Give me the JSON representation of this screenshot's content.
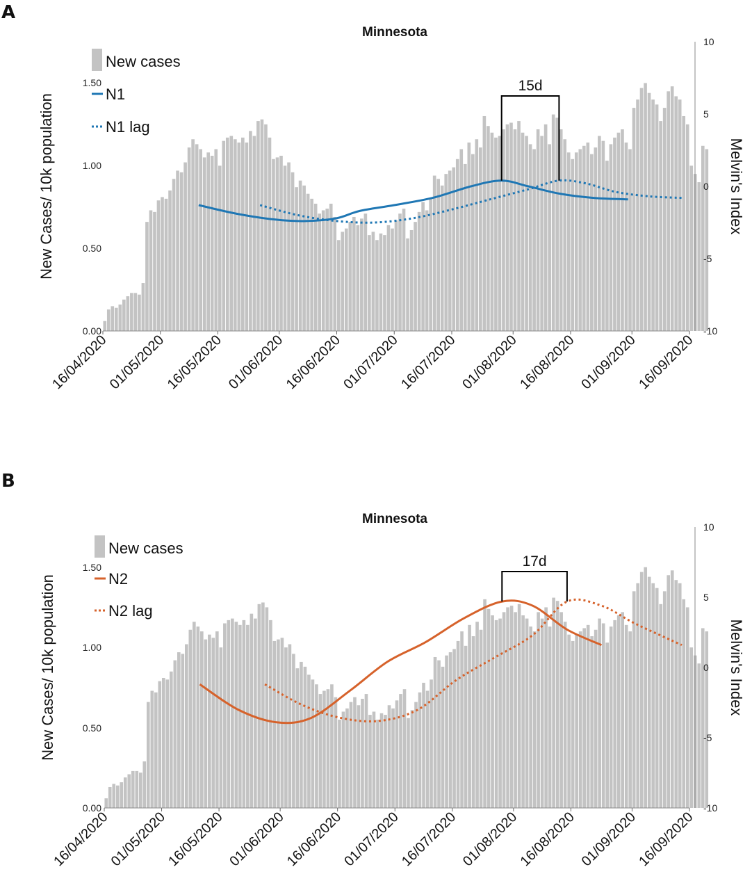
{
  "colors": {
    "bars": "#c3c3c3",
    "n1": "#1f77b4",
    "n2": "#d6622b",
    "bracket": "#000000"
  },
  "chart_data": [
    {
      "panel_label": "A",
      "type": "bar+line",
      "title": "Minnesota",
      "ylabel": "New Cases/ 10k population",
      "y2label": "Melvin's Index",
      "ylim": [
        0,
        1.75
      ],
      "y2lim": [
        -10,
        10
      ],
      "yticks": [
        "0.00",
        "0.50",
        "1.00",
        "1.50"
      ],
      "y2ticks": [
        "10",
        "5",
        "0",
        "-5",
        "-10"
      ],
      "xlim": [
        "2020-04-16",
        "2020-09-16"
      ],
      "xticks": [
        "16/04/2020",
        "01/05/2020",
        "16/05/2020",
        "01/06/2020",
        "16/06/2020",
        "01/07/2020",
        "16/07/2020",
        "01/08/2020",
        "16/08/2020",
        "01/09/2020",
        "16/09/2020"
      ],
      "legend_position": "top-left",
      "legend": {
        "bars": "New cases",
        "solid": "N1",
        "dashed": "N1 lag"
      },
      "bracket": {
        "label": "15d",
        "start": "2020-07-29",
        "end": "2020-08-13"
      },
      "bars": {
        "start_date": "2020-04-16",
        "series": "New cases",
        "values": [
          0.06,
          0.13,
          0.15,
          0.14,
          0.16,
          0.19,
          0.21,
          0.23,
          0.23,
          0.22,
          0.29,
          0.66,
          0.73,
          0.72,
          0.79,
          0.81,
          0.8,
          0.85,
          0.92,
          0.97,
          0.96,
          1.02,
          1.11,
          1.16,
          1.13,
          1.1,
          1.05,
          1.08,
          1.06,
          1.1,
          1.0,
          1.15,
          1.17,
          1.18,
          1.16,
          1.14,
          1.17,
          1.14,
          1.21,
          1.18,
          1.27,
          1.28,
          1.25,
          1.17,
          1.04,
          1.05,
          1.06,
          1.0,
          1.02,
          0.96,
          0.87,
          0.91,
          0.88,
          0.83,
          0.8,
          0.77,
          0.71,
          0.73,
          0.74,
          0.77,
          0.69,
          0.55,
          0.6,
          0.62,
          0.66,
          0.69,
          0.64,
          0.68,
          0.71,
          0.58,
          0.6,
          0.55,
          0.59,
          0.58,
          0.64,
          0.62,
          0.67,
          0.71,
          0.74,
          0.56,
          0.61,
          0.66,
          0.72,
          0.78,
          0.73,
          0.8,
          0.94,
          0.92,
          0.88,
          0.95,
          0.97,
          0.99,
          1.04,
          1.1,
          1.01,
          1.14,
          1.07,
          1.16,
          1.11,
          1.3,
          1.24,
          1.2,
          1.17,
          1.18,
          1.22,
          1.25,
          1.26,
          1.22,
          1.27,
          1.2,
          1.18,
          1.13,
          1.1,
          1.22,
          1.18,
          1.25,
          1.13,
          1.31,
          1.29,
          1.22,
          1.16,
          1.08,
          1.04,
          1.08,
          1.1,
          1.12,
          1.14,
          1.07,
          1.11,
          1.18,
          1.15,
          1.03,
          1.13,
          1.17,
          1.2,
          1.22,
          1.14,
          1.1,
          1.35,
          1.4,
          1.47,
          1.5,
          1.44,
          1.4,
          1.37,
          1.27,
          1.35,
          1.45,
          1.48,
          1.42,
          1.4,
          1.3,
          1.25,
          1.0,
          0.95,
          0.9,
          1.12,
          1.1
        ]
      },
      "lines": [
        {
          "name": "N1",
          "style": "solid",
          "color_key": "n1",
          "x": [
            "2020-05-11",
            "2020-05-21",
            "2020-05-31",
            "2020-06-08",
            "2020-06-16",
            "2020-06-22",
            "2020-07-01",
            "2020-07-11",
            "2020-07-21",
            "2020-07-29",
            "2020-08-05",
            "2020-08-13",
            "2020-08-22",
            "2020-08-31"
          ],
          "y": [
            -1.3,
            -1.9,
            -2.3,
            -2.4,
            -2.2,
            -1.7,
            -1.3,
            -0.8,
            0.0,
            0.4,
            0.0,
            -0.5,
            -0.8,
            -0.9
          ]
        },
        {
          "name": "N1 lag",
          "style": "dashed",
          "color_key": "n1",
          "x": [
            "2020-05-27",
            "2020-06-06",
            "2020-06-16",
            "2020-06-26",
            "2020-07-06",
            "2020-07-16",
            "2020-07-26",
            "2020-08-05",
            "2020-08-13",
            "2020-08-20",
            "2020-08-28",
            "2020-09-06",
            "2020-09-14"
          ],
          "y": [
            -1.3,
            -2.0,
            -2.4,
            -2.5,
            -2.2,
            -1.6,
            -0.9,
            -0.2,
            0.4,
            0.2,
            -0.4,
            -0.7,
            -0.8
          ]
        }
      ]
    },
    {
      "panel_label": "B",
      "type": "bar+line",
      "title": "Minnesota",
      "ylabel": "New Cases/ 10k population",
      "y2label": "Melvin's Index",
      "ylim": [
        0,
        1.75
      ],
      "y2lim": [
        -10,
        10
      ],
      "yticks": [
        "0.00",
        "0.50",
        "1.00",
        "1.50"
      ],
      "y2ticks": [
        "10",
        "5",
        "0",
        "-5",
        "-10"
      ],
      "xlim": [
        "2020-04-16",
        "2020-09-16"
      ],
      "xticks": [
        "16/04/2020",
        "01/05/2020",
        "16/05/2020",
        "01/06/2020",
        "16/06/2020",
        "01/07/2020",
        "16/07/2020",
        "01/08/2020",
        "16/08/2020",
        "01/09/2020",
        "16/09/2020"
      ],
      "legend_position": "top-left",
      "legend": {
        "bars": "New cases",
        "solid": "N2",
        "dashed": "N2 lag"
      },
      "bracket": {
        "label": "17d",
        "start": "2020-07-29",
        "end": "2020-08-15"
      },
      "bars": {
        "start_date": "2020-04-16",
        "series": "New cases",
        "values": [
          0.06,
          0.13,
          0.15,
          0.14,
          0.16,
          0.19,
          0.21,
          0.23,
          0.23,
          0.22,
          0.29,
          0.66,
          0.73,
          0.72,
          0.79,
          0.81,
          0.8,
          0.85,
          0.92,
          0.97,
          0.96,
          1.02,
          1.11,
          1.16,
          1.13,
          1.1,
          1.05,
          1.08,
          1.06,
          1.1,
          1.0,
          1.15,
          1.17,
          1.18,
          1.16,
          1.14,
          1.17,
          1.14,
          1.21,
          1.18,
          1.27,
          1.28,
          1.25,
          1.17,
          1.04,
          1.05,
          1.06,
          1.0,
          1.02,
          0.96,
          0.87,
          0.91,
          0.88,
          0.83,
          0.8,
          0.77,
          0.71,
          0.73,
          0.74,
          0.77,
          0.69,
          0.55,
          0.6,
          0.62,
          0.66,
          0.69,
          0.64,
          0.68,
          0.71,
          0.58,
          0.6,
          0.55,
          0.59,
          0.58,
          0.64,
          0.62,
          0.67,
          0.71,
          0.74,
          0.56,
          0.61,
          0.66,
          0.72,
          0.78,
          0.73,
          0.8,
          0.94,
          0.92,
          0.88,
          0.95,
          0.97,
          0.99,
          1.04,
          1.1,
          1.01,
          1.14,
          1.07,
          1.16,
          1.11,
          1.3,
          1.24,
          1.2,
          1.17,
          1.18,
          1.22,
          1.25,
          1.26,
          1.22,
          1.27,
          1.2,
          1.18,
          1.13,
          1.1,
          1.22,
          1.18,
          1.25,
          1.13,
          1.31,
          1.29,
          1.22,
          1.16,
          1.08,
          1.04,
          1.08,
          1.1,
          1.12,
          1.14,
          1.07,
          1.11,
          1.18,
          1.15,
          1.03,
          1.13,
          1.17,
          1.2,
          1.22,
          1.14,
          1.1,
          1.35,
          1.4,
          1.47,
          1.5,
          1.44,
          1.4,
          1.37,
          1.27,
          1.35,
          1.45,
          1.48,
          1.42,
          1.4,
          1.3,
          1.25,
          1.0,
          0.95,
          0.9,
          1.12,
          1.1
        ]
      },
      "lines": [
        {
          "name": "N2",
          "style": "solid",
          "color_key": "n2",
          "x": [
            "2020-05-11",
            "2020-05-21",
            "2020-05-31",
            "2020-06-09",
            "2020-06-19",
            "2020-06-29",
            "2020-07-09",
            "2020-07-19",
            "2020-07-29",
            "2020-08-06",
            "2020-08-15",
            "2020-08-24"
          ],
          "y": [
            -1.2,
            -3.0,
            -3.9,
            -3.6,
            -1.7,
            0.4,
            1.8,
            3.5,
            4.7,
            4.4,
            2.7,
            1.6
          ]
        },
        {
          "name": "N2 lag",
          "style": "dashed",
          "color_key": "n2",
          "x": [
            "2020-05-28",
            "2020-06-07",
            "2020-06-17",
            "2020-06-27",
            "2020-07-07",
            "2020-07-17",
            "2020-07-27",
            "2020-08-06",
            "2020-08-15",
            "2020-08-24",
            "2020-09-02",
            "2020-09-14"
          ],
          "y": [
            -1.2,
            -2.7,
            -3.6,
            -3.8,
            -3.0,
            -0.9,
            0.7,
            2.3,
            4.7,
            4.4,
            3.1,
            1.6
          ]
        }
      ]
    }
  ]
}
